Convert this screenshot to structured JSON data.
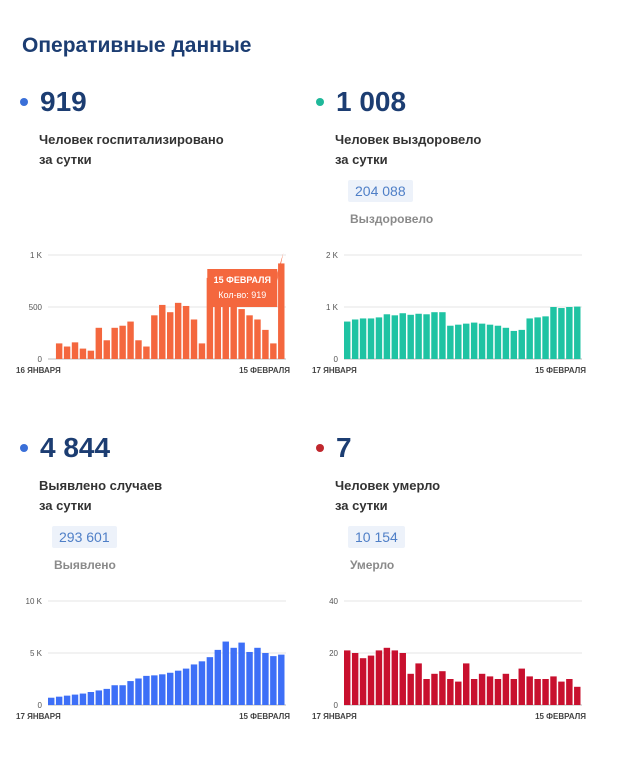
{
  "page": {
    "title": "Оперативные данные"
  },
  "panels": [
    {
      "value": "919",
      "caption_line1": "Человек госпитализировано",
      "caption_line2": "за сутки",
      "dot_color": "#3a6fd8",
      "total": "",
      "total_label": "",
      "chart_data": {
        "type": "bar",
        "color": "#f4673e",
        "y_ticks": [
          "0",
          "500",
          "1 K"
        ],
        "ylim": [
          0,
          1000
        ],
        "x_start_label": "16 ЯНВАРЯ",
        "x_end_label": "15 ФЕВРАЛЯ",
        "values": [
          0,
          150,
          120,
          160,
          100,
          80,
          300,
          180,
          300,
          320,
          360,
          180,
          120,
          420,
          520,
          450,
          540,
          510,
          380,
          150,
          780,
          680,
          600,
          520,
          480,
          420,
          380,
          280,
          150,
          919
        ],
        "tooltip": {
          "line1": "15 ФЕВРАЛЯ",
          "line2": "Кол-во: 919",
          "color": "#f4673e"
        }
      }
    },
    {
      "value": "1 008",
      "caption_line1": "Человек выздоровело",
      "caption_line2": "за сутки",
      "dot_color": "#1fb89a",
      "total": "204 088",
      "total_label": "Выздоровело",
      "chart_data": {
        "type": "bar",
        "color": "#1fc3a3",
        "y_ticks": [
          "0",
          "1 K",
          "2 K"
        ],
        "ylim": [
          0,
          2000
        ],
        "x_start_label": "17 ЯНВАРЯ",
        "x_end_label": "15 ФЕВРАЛЯ",
        "values": [
          720,
          760,
          780,
          780,
          800,
          860,
          840,
          880,
          850,
          870,
          860,
          900,
          900,
          640,
          660,
          680,
          700,
          680,
          660,
          640,
          600,
          540,
          560,
          780,
          800,
          820,
          1000,
          980,
          1000,
          1008
        ]
      }
    },
    {
      "value": "4 844",
      "caption_line1": "Выявлено случаев",
      "caption_line2": "за сутки",
      "dot_color": "#3a6fd8",
      "total": "293 601",
      "total_label": "Выявлено",
      "chart_data": {
        "type": "bar",
        "color": "#3d6ff7",
        "y_ticks": [
          "0",
          "5 K",
          "10 K"
        ],
        "ylim": [
          0,
          10000
        ],
        "x_start_label": "17 ЯНВАРЯ",
        "x_end_label": "15 ФЕВРАЛЯ",
        "values": [
          700,
          800,
          900,
          1000,
          1100,
          1250,
          1400,
          1550,
          1900,
          1900,
          2300,
          2550,
          2800,
          2850,
          2950,
          3100,
          3300,
          3500,
          3900,
          4200,
          4600,
          5300,
          6100,
          5500,
          6000,
          5100,
          5500,
          5000,
          4700,
          4844
        ]
      }
    },
    {
      "value": "7",
      "caption_line1": "Человек умерло",
      "caption_line2": "за сутки",
      "dot_color": "#c0272d",
      "total": "10 154",
      "total_label": "Умерло",
      "chart_data": {
        "type": "bar",
        "color": "#c8102e",
        "y_ticks": [
          "0",
          "20",
          "40"
        ],
        "ylim": [
          0,
          40
        ],
        "x_start_label": "17 ЯНВАРЯ",
        "x_end_label": "15 ФЕВРАЛЯ",
        "values": [
          21,
          20,
          18,
          19,
          21,
          22,
          21,
          20,
          12,
          16,
          10,
          12,
          13,
          10,
          9,
          16,
          10,
          12,
          11,
          10,
          12,
          10,
          14,
          11,
          10,
          10,
          11,
          9,
          10,
          7
        ]
      }
    }
  ]
}
